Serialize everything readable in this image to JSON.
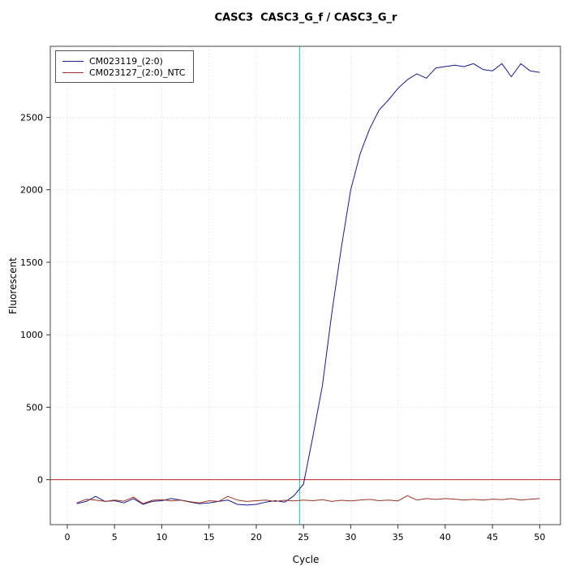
{
  "title": "CASC3  CASC3_G_f / CASC3_G_r",
  "chart_data": {
    "type": "line",
    "title": "CASC3  CASC3_G_f / CASC3_G_r",
    "xlabel": "Cycle",
    "ylabel": "Fluorescent",
    "xlim": [
      -1.8,
      52.2
    ],
    "ylim": [
      -310,
      2990
    ],
    "xticks": [
      0,
      5,
      10,
      15,
      20,
      25,
      30,
      35,
      40,
      45,
      50
    ],
    "yticks": [
      0,
      500,
      1000,
      1500,
      2000,
      2500
    ],
    "grid": true,
    "grid_color": "#d6d6d6",
    "legend_position": "top-left",
    "threshold_line": {
      "y": 0,
      "color": "#cc2222"
    },
    "ct_line": {
      "x": 24.6,
      "color": "#00dddd"
    },
    "x": [
      1,
      2,
      3,
      4,
      5,
      6,
      7,
      8,
      9,
      10,
      11,
      12,
      13,
      14,
      15,
      16,
      17,
      18,
      19,
      20,
      21,
      22,
      23,
      24,
      25,
      26,
      27,
      28,
      29,
      30,
      31,
      32,
      33,
      34,
      35,
      36,
      37,
      38,
      39,
      40,
      41,
      42,
      43,
      44,
      45,
      46,
      47,
      48,
      49,
      50
    ],
    "series": [
      {
        "name": "CM023119_(2:0)",
        "color": "#1a1a8c",
        "values": [
          -165,
          -150,
          -115,
          -150,
          -145,
          -160,
          -130,
          -170,
          -150,
          -145,
          -130,
          -140,
          -155,
          -165,
          -160,
          -150,
          -140,
          -170,
          -175,
          -170,
          -155,
          -145,
          -155,
          -110,
          -30,
          300,
          650,
          1150,
          1600,
          2000,
          2250,
          2420,
          2550,
          2620,
          2700,
          2760,
          2800,
          2770,
          2840,
          2850,
          2860,
          2850,
          2870,
          2830,
          2820,
          2870,
          2780,
          2870,
          2820,
          2810
        ]
      },
      {
        "name": "CM023127_(2:0)_NTC",
        "color": "#993322",
        "values": [
          -160,
          -135,
          -140,
          -150,
          -140,
          -148,
          -120,
          -165,
          -142,
          -138,
          -146,
          -140,
          -152,
          -160,
          -145,
          -150,
          -115,
          -140,
          -150,
          -145,
          -140,
          -150,
          -142,
          -146,
          -140,
          -145,
          -138,
          -150,
          -142,
          -146,
          -140,
          -136,
          -145,
          -140,
          -146,
          -110,
          -140,
          -130,
          -136,
          -130,
          -134,
          -140,
          -136,
          -140,
          -134,
          -138,
          -130,
          -140,
          -134,
          -130
        ]
      }
    ]
  }
}
